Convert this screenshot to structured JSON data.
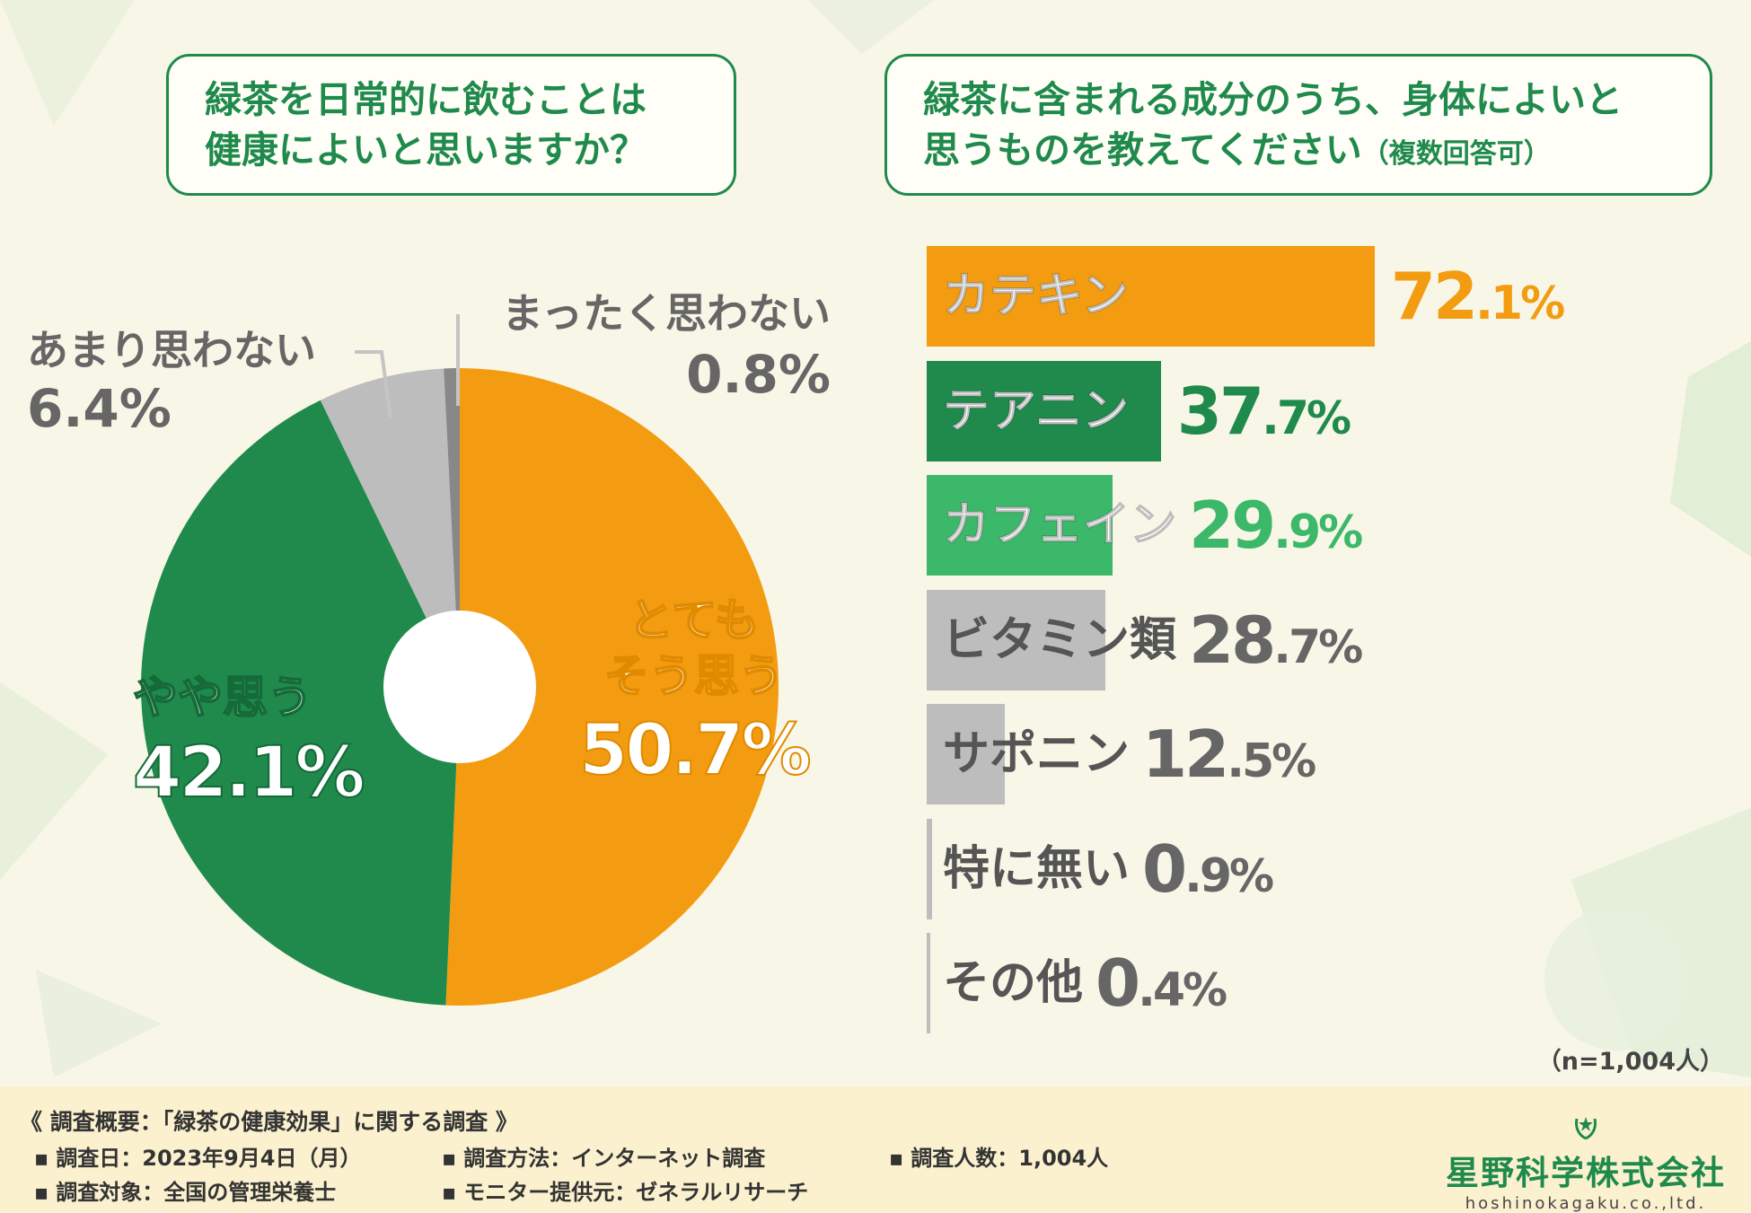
{
  "questions": {
    "q1": {
      "line1": "緑茶を日常的に飲むことは",
      "line2": "健康によいと思いますか？"
    },
    "q2": {
      "line1": "緑茶に含まれる成分のうち、身体によいと",
      "line2": "思うものを教えてください",
      "note": "（複数回答可）"
    }
  },
  "chart_data": [
    {
      "type": "pie",
      "style": "donut",
      "title": "緑茶を日常的に飲むことは健康によいと思いますか？",
      "slices": [
        {
          "name_line1": "とても",
          "name_line2": "そう思う",
          "value": 50.7,
          "value_label": "50.7%",
          "color": "#f39c12"
        },
        {
          "name_line1": "やや思う",
          "name_line2": "",
          "value": 42.1,
          "value_label": "42.1%",
          "color": "#1f8a4c"
        },
        {
          "name_line1": "あまり思わない",
          "name_line2": "",
          "value": 6.4,
          "value_label": "6.4%",
          "color": "#bdbdbd"
        },
        {
          "name_line1": "まったく思わない",
          "name_line2": "",
          "value": 0.8,
          "value_label": "0.8%",
          "color": "#888888"
        }
      ]
    },
    {
      "type": "bar",
      "orientation": "horizontal",
      "title": "緑茶に含まれる成分のうち、身体によいと思うものを教えてください（複数回答可）",
      "xlim": [
        0,
        100
      ],
      "categories": [
        "カテキン",
        "テアニン",
        "カフェイン",
        "ビタミン類",
        "サポニン",
        "特に無い",
        "その他"
      ],
      "values": [
        72.1,
        37.7,
        29.9,
        28.7,
        12.5,
        0.9,
        0.4
      ],
      "value_labels": [
        "72.1%",
        "37.7%",
        "29.9%",
        "28.7%",
        "12.5%",
        "0.9%",
        "0.4%"
      ],
      "colors": [
        "#f39c12",
        "#1f8a4c",
        "#3cb86a",
        "#bdbdbd",
        "#bdbdbd",
        "#bdbdbd",
        "#bdbdbd"
      ],
      "label_colors": [
        "#ffffff",
        "#ffffff",
        "#ffffff",
        "#555555",
        "#555555",
        "#555555",
        "#555555"
      ],
      "value_colors": [
        "#f39c12",
        "#1f8a4c",
        "#3cb86a",
        "#666666",
        "#666666",
        "#666666",
        "#666666"
      ]
    }
  ],
  "sample_note": "（n=1,004人）",
  "survey": {
    "title": "《 調査概要：「緑茶の健康効果」に関する調査 》",
    "date": "調査日：2023年9月4日（月）",
    "method": "調査方法：インターネット調査",
    "count": "調査人数：1,004人",
    "target": "調査対象：全国の管理栄養士",
    "provider": "モニター提供元：ゼネラルリサーチ"
  },
  "company": {
    "name": "星野科学株式会社",
    "sub": "hoshinokagaku.co.,ltd."
  }
}
